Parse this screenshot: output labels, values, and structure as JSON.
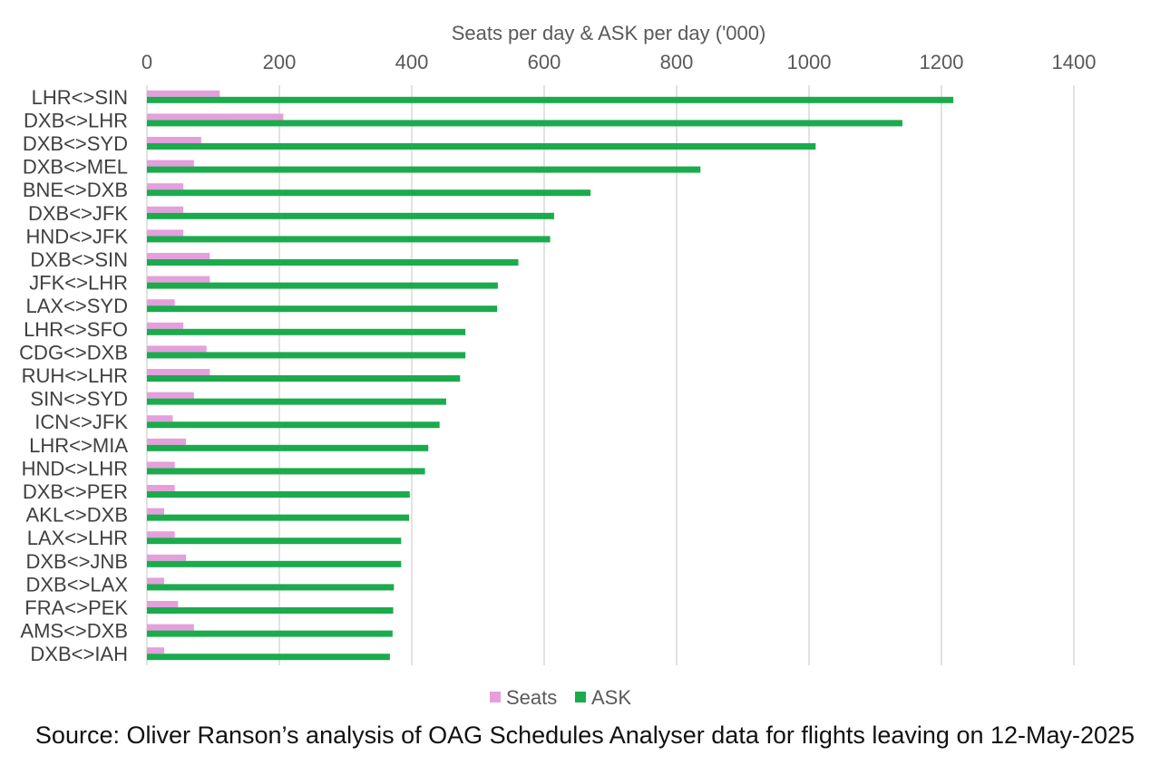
{
  "chart_data": {
    "type": "bar",
    "orientation": "horizontal",
    "title": "",
    "xlabel": "Seats per day & ASK per day ('000)",
    "ylabel": "",
    "xlim": [
      0,
      1400
    ],
    "x_ticks": [
      0,
      200,
      400,
      600,
      800,
      1000,
      1200,
      1400
    ],
    "x_axis_position": "top",
    "grid": true,
    "legend_position": "bottom-center",
    "categories": [
      "LHR<>SIN",
      "DXB<>LHR",
      "DXB<>SYD",
      "DXB<>MEL",
      "BNE<>DXB",
      "DXB<>JFK",
      "HND<>JFK",
      "DXB<>SIN",
      "JFK<>LHR",
      "LAX<>SYD",
      "LHR<>SFO",
      "CDG<>DXB",
      "RUH<>LHR",
      "SIN<>SYD",
      "ICN<>JFK",
      "LHR<>MIA",
      "HND<>LHR",
      "DXB<>PER",
      "AKL<>DXB",
      "LAX<>LHR",
      "DXB<>JNB",
      "DXB<>LAX",
      "FRA<>PEK",
      "AMS<>DXB",
      "DXB<>IAH"
    ],
    "series": [
      {
        "name": "Seats",
        "color": "#e49fdc",
        "values": [
          110,
          206,
          82,
          71,
          55,
          55,
          55,
          95,
          95,
          42,
          55,
          90,
          95,
          71,
          39,
          59,
          42,
          42,
          26,
          42,
          59,
          26,
          47,
          71,
          26
        ]
      },
      {
        "name": "ASK",
        "color": "#1bab4c",
        "values": [
          1218,
          1141,
          1010,
          836,
          670,
          615,
          609,
          561,
          530,
          529,
          481,
          481,
          473,
          452,
          442,
          425,
          420,
          397,
          396,
          384,
          384,
          373,
          372,
          371,
          367
        ]
      }
    ]
  },
  "footer": {
    "source": "Source: Oliver Ranson’s analysis of OAG Schedules Analyser data for flights leaving on 12-May-2025"
  }
}
